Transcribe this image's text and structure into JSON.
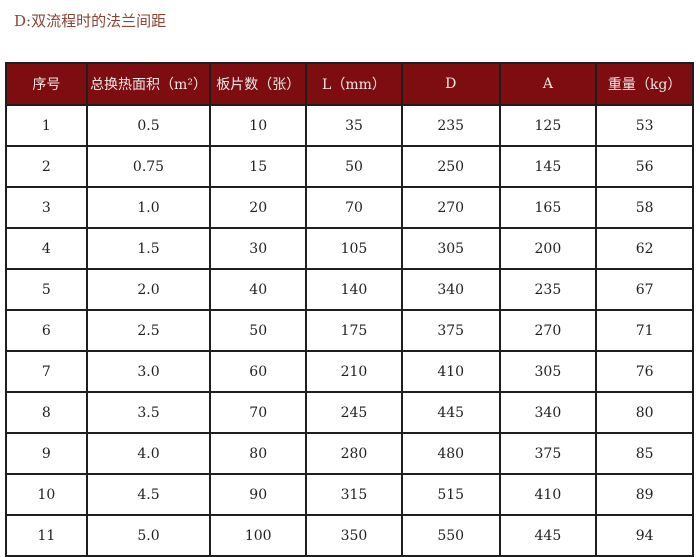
{
  "title": "D:双流程时的法兰间距",
  "table": {
    "headers": [
      "序号",
      "总换热面积（m²）",
      "板片数（张）",
      "L（mm）",
      "D",
      "A",
      "重量（kg）"
    ],
    "rows": [
      [
        "1",
        "0.5",
        "10",
        "35",
        "235",
        "125",
        "53"
      ],
      [
        "2",
        "0.75",
        "15",
        "50",
        "250",
        "145",
        "56"
      ],
      [
        "3",
        "1.0",
        "20",
        "70",
        "270",
        "165",
        "58"
      ],
      [
        "4",
        "1.5",
        "30",
        "105",
        "305",
        "200",
        "62"
      ],
      [
        "5",
        "2.0",
        "40",
        "140",
        "340",
        "235",
        "67"
      ],
      [
        "6",
        "2.5",
        "50",
        "175",
        "375",
        "270",
        "71"
      ],
      [
        "7",
        "3.0",
        "60",
        "210",
        "410",
        "305",
        "76"
      ],
      [
        "8",
        "3.5",
        "70",
        "245",
        "445",
        "340",
        "80"
      ],
      [
        "9",
        "4.0",
        "80",
        "280",
        "480",
        "375",
        "85"
      ],
      [
        "10",
        "4.5",
        "90",
        "315",
        "515",
        "410",
        "89"
      ],
      [
        "11",
        "5.0",
        "100",
        "350",
        "550",
        "445",
        "94"
      ]
    ]
  },
  "colors": {
    "header_bg": "#7d0d10",
    "title": "#8a4535"
  }
}
